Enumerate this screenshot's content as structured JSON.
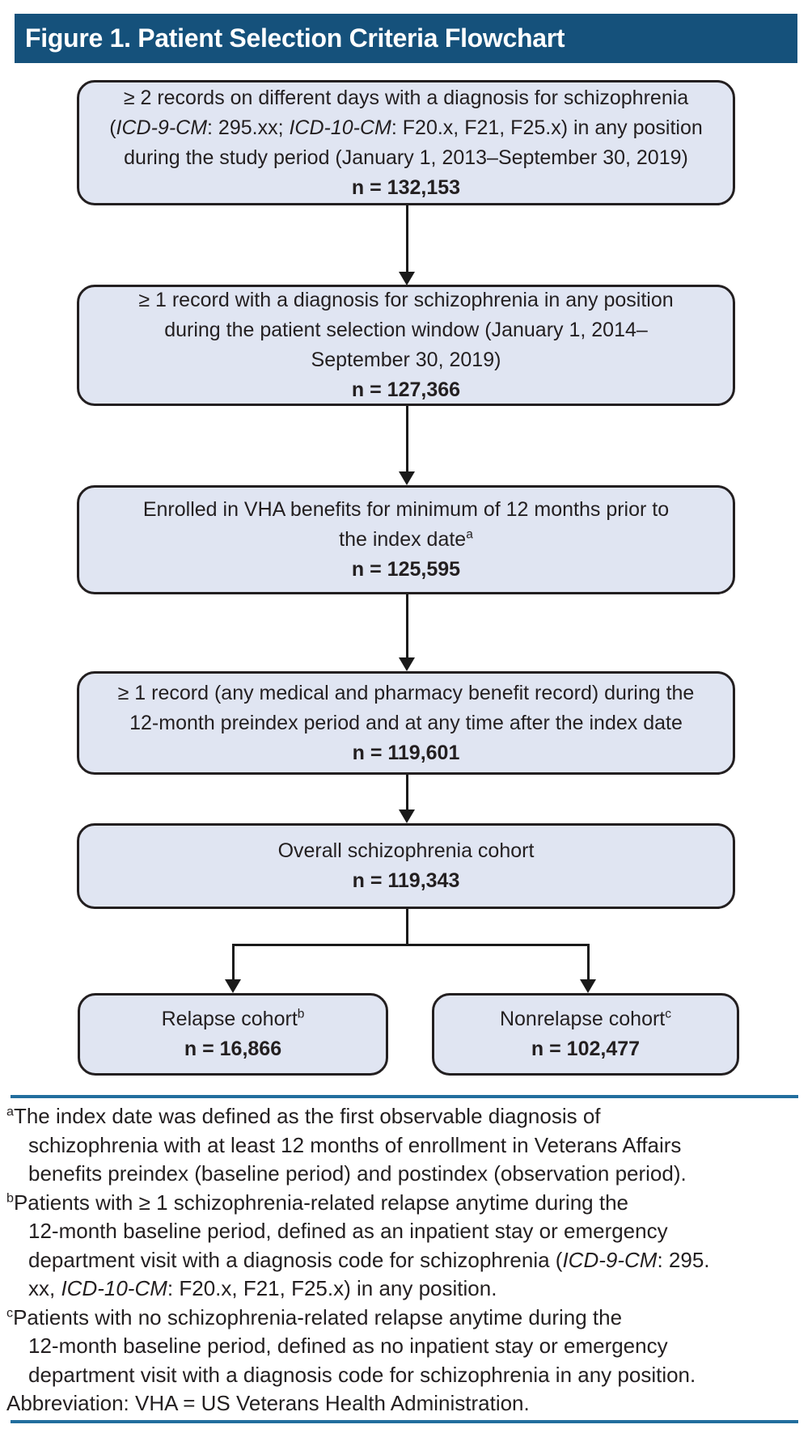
{
  "title": "Figure 1. Patient Selection Criteria Flowchart",
  "colors": {
    "title_bar_bg": "#15517B",
    "title_text": "#FFFFFF",
    "box_fill": "#E0E5F2",
    "box_border": "#231F20",
    "line_color": "#1A1A1A",
    "divider": "#226E9E",
    "text": "#231F20"
  },
  "flowchart": {
    "box1": {
      "l1": "≥ 2 records on different days with a diagnosis for schizophrenia",
      "l2a": "(",
      "l2b": "ICD-9-CM",
      "l2c": ": 295.xx; ",
      "l2d": "ICD-10-CM",
      "l2e": ": F20.x, F21, F25.x) in any position",
      "l3": "during the study period (January 1, 2013–September 30, 2019)",
      "n": "n = 132,153"
    },
    "box2": {
      "l1": "≥ 1 record with a diagnosis for schizophrenia in any position",
      "l2": "during the patient selection window (January 1, 2014–",
      "l3": "September 30, 2019)",
      "n": "n = 127,366"
    },
    "box3": {
      "l1": "Enrolled in VHA benefits for minimum of 12 months prior to",
      "l2": "the index date",
      "l2_sup": "a",
      "n": "n = 125,595"
    },
    "box4": {
      "l1": "≥ 1 record (any medical and pharmacy benefit record) during the",
      "l2": "12-month preindex period and at any time after the index date",
      "n": "n = 119,601"
    },
    "box5": {
      "l1": "Overall schizophrenia cohort",
      "n": "n = 119,343"
    },
    "box_relapse": {
      "label": "Relapse cohort",
      "sup": "b",
      "n": "n = 16,866"
    },
    "box_nonrelapse": {
      "label": "Nonrelapse cohort",
      "sup": "c",
      "n": "n = 102,477"
    }
  },
  "footnotes": {
    "a": {
      "marker": "a",
      "line1": "The index date was defined as the first observable diagnosis of",
      "line2": "schizophrenia with at least 12 months of enrollment in Veterans Affairs",
      "line3": "benefits preindex (baseline period) and postindex (observation period)."
    },
    "b": {
      "marker": "b",
      "line1": "Patients with ≥ 1 schizophrenia-related relapse anytime during the",
      "line2": "12-month baseline period, defined as an inpatient stay or emergency",
      "line3a": "department visit with a diagnosis code for schizophrenia (",
      "line3b": "ICD-9-CM",
      "line3c": ": 295.",
      "line4a": "xx, ",
      "line4b": "ICD-10-CM",
      "line4c": ": F20.x, F21, F25.x) in any position."
    },
    "c": {
      "marker": "c",
      "line1": "Patients with no schizophrenia-related relapse anytime during the",
      "line2": "12-month baseline period, defined as no inpatient stay or emergency",
      "line3": "department visit with a diagnosis code for schizophrenia in any position."
    },
    "abbreviation": "Abbreviation: VHA = US Veterans Health Administration."
  }
}
